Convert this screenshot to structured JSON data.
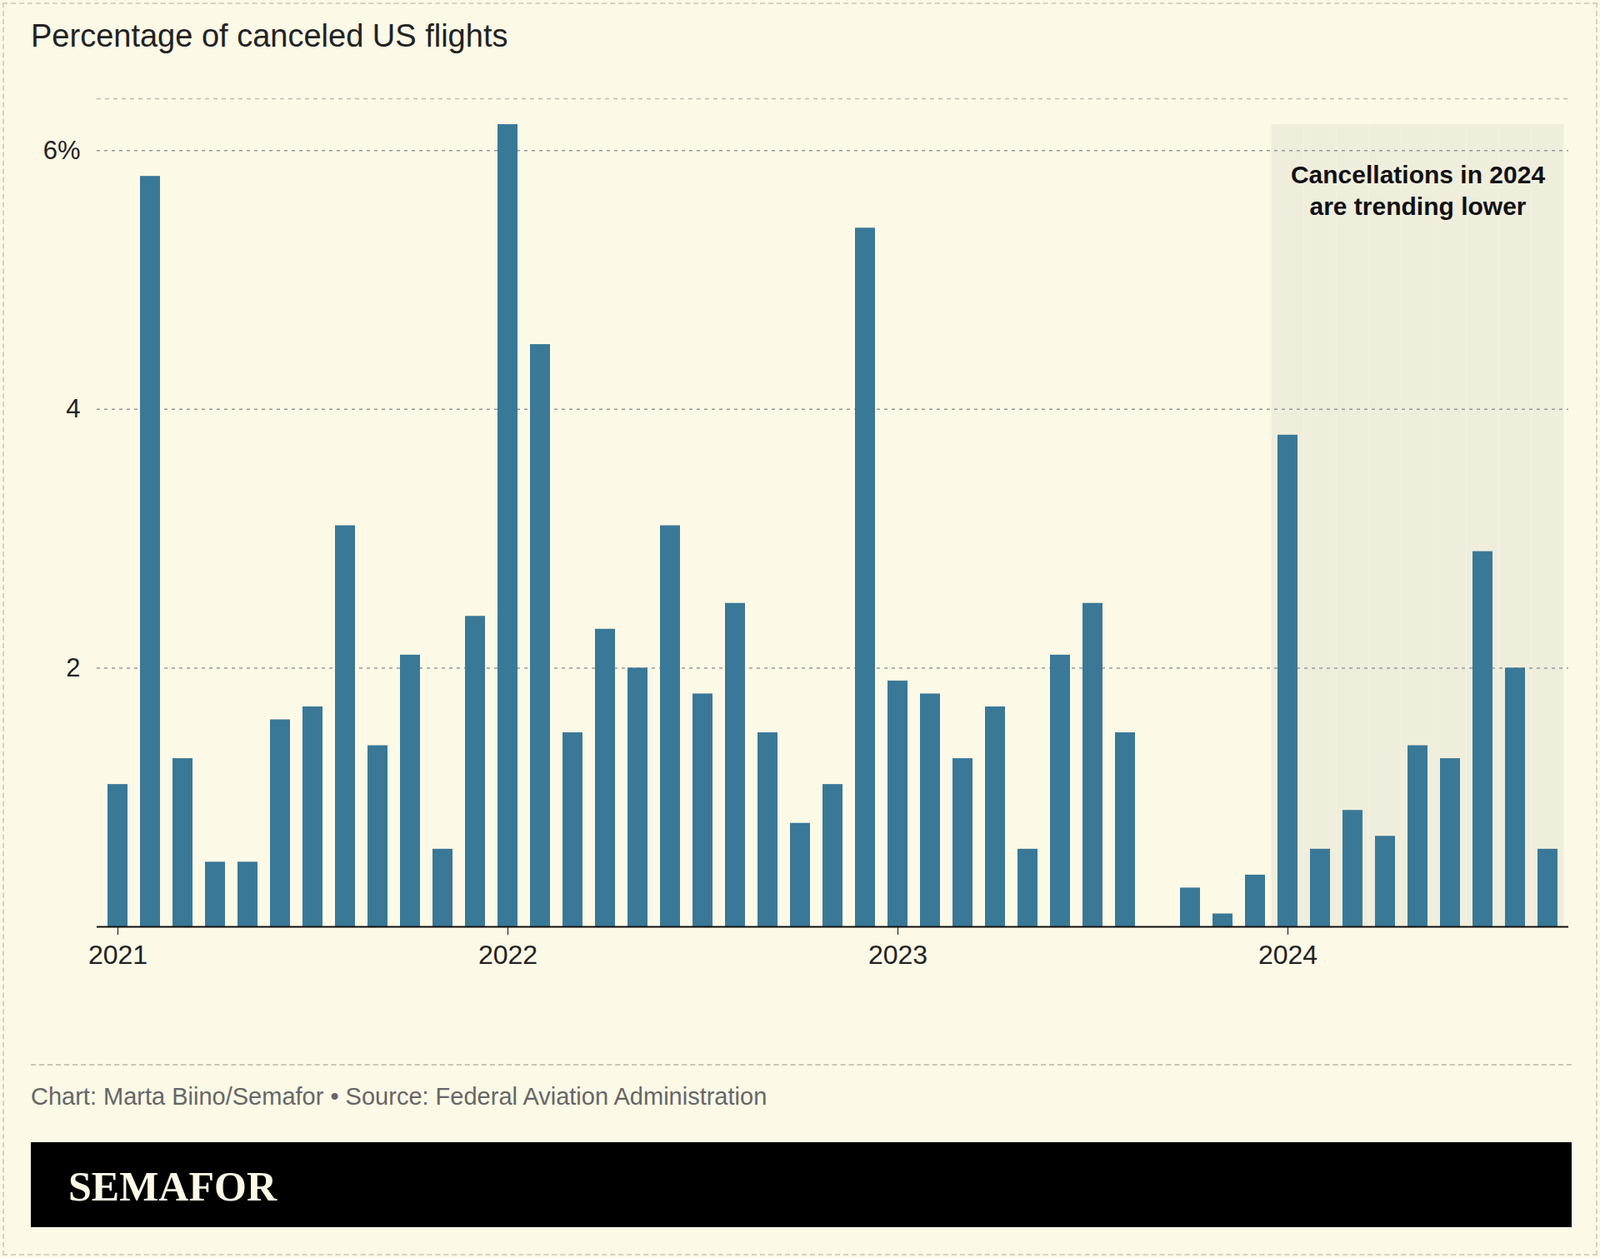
{
  "chart_data": {
    "type": "bar",
    "title": "Percentage of canceled US flights",
    "caption": "Chart: Marta Biino/Semafor • Source: Federal Aviation Administration",
    "brand": "SEMAFOR",
    "annotation": "Cancellations in 2024\nare trending lower",
    "categories": [
      "2021",
      null,
      null,
      null,
      null,
      null,
      null,
      null,
      null,
      null,
      null,
      null,
      "2022",
      null,
      null,
      null,
      null,
      null,
      null,
      null,
      null,
      null,
      null,
      null,
      "2023",
      null,
      null,
      null,
      null,
      null,
      null,
      null,
      null,
      null,
      null,
      null,
      "2024",
      null,
      null,
      null,
      null,
      null,
      null,
      null,
      null
    ],
    "values": [
      1.1,
      5.8,
      1.3,
      0.5,
      0.5,
      1.6,
      1.7,
      3.1,
      1.4,
      2.1,
      0.6,
      2.4,
      6.2,
      4.5,
      1.5,
      2.3,
      2.0,
      3.1,
      1.8,
      2.5,
      1.5,
      0.8,
      1.1,
      5.4,
      1.9,
      1.8,
      1.3,
      1.7,
      0.6,
      2.1,
      2.5,
      1.5,
      null,
      0.3,
      0.1,
      0.4,
      3.8,
      0.6,
      0.9,
      0.7,
      1.4,
      1.3,
      2.9,
      2.0,
      0.6
    ],
    "color": "#3a7897",
    "ylim": [
      0,
      6.4
    ],
    "yticks": [
      {
        "value": 6,
        "label": "6%"
      },
      4,
      2
    ],
    "grid": true
  }
}
